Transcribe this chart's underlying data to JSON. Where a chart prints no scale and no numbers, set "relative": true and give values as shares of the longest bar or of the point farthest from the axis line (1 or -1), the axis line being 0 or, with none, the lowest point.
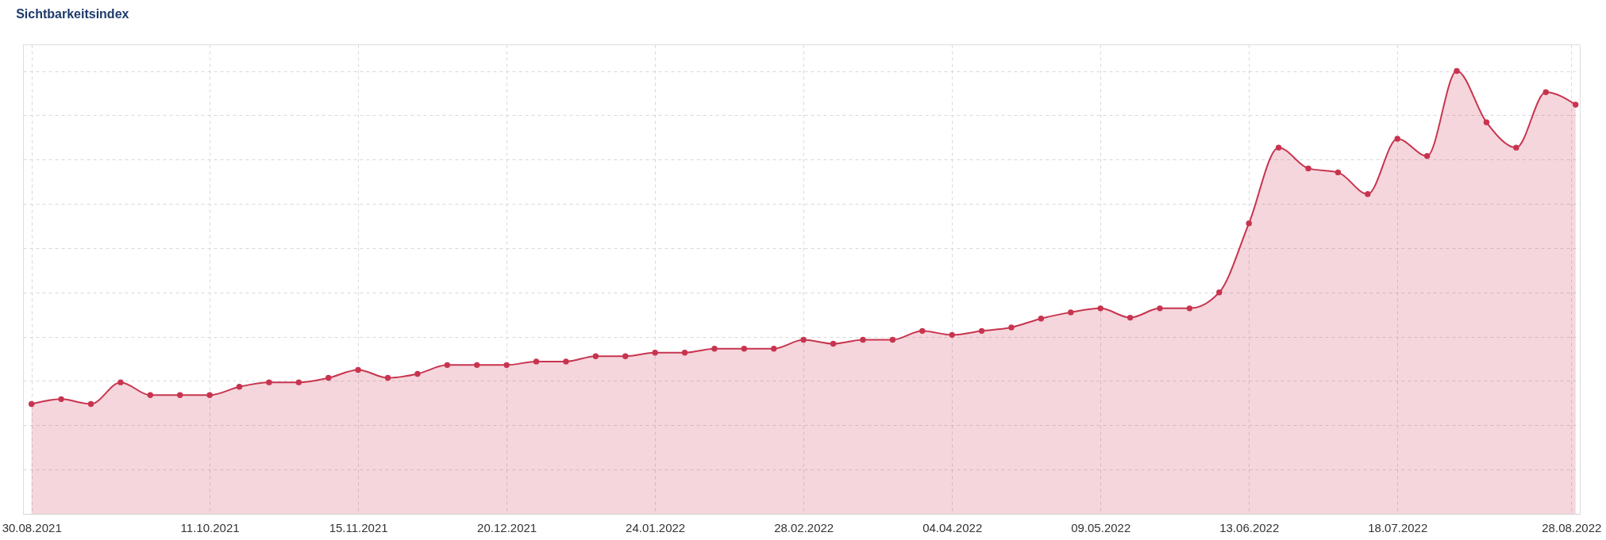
{
  "chart_data": {
    "type": "area",
    "title": "Sichtbarkeitsindex",
    "relative": true,
    "x": [
      "2021-08-30",
      "2021-09-06",
      "2021-09-13",
      "2021-09-20",
      "2021-09-27",
      "2021-10-04",
      "2021-10-11",
      "2021-10-18",
      "2021-10-25",
      "2021-11-01",
      "2021-11-08",
      "2021-11-15",
      "2021-11-22",
      "2021-11-29",
      "2021-12-06",
      "2021-12-13",
      "2021-12-20",
      "2021-12-27",
      "2022-01-03",
      "2022-01-10",
      "2022-01-17",
      "2022-01-24",
      "2022-01-31",
      "2022-02-07",
      "2022-02-14",
      "2022-02-21",
      "2022-02-28",
      "2022-03-07",
      "2022-03-14",
      "2022-03-21",
      "2022-03-28",
      "2022-04-04",
      "2022-04-11",
      "2022-04-18",
      "2022-04-25",
      "2022-05-02",
      "2022-05-09",
      "2022-05-16",
      "2022-05-23",
      "2022-05-30",
      "2022-06-06",
      "2022-06-13",
      "2022-06-20",
      "2022-06-27",
      "2022-07-04",
      "2022-07-11",
      "2022-07-18",
      "2022-07-25",
      "2022-08-01",
      "2022-08-08",
      "2022-08-15",
      "2022-08-22",
      "2022-08-29"
    ],
    "series": [
      {
        "color": "#c8344f",
        "values": [
          0.248,
          0.259,
          0.248,
          0.297,
          0.268,
          0.268,
          0.268,
          0.287,
          0.297,
          0.297,
          0.307,
          0.325,
          0.307,
          0.316,
          0.336,
          0.336,
          0.336,
          0.344,
          0.344,
          0.356,
          0.356,
          0.364,
          0.364,
          0.373,
          0.373,
          0.373,
          0.393,
          0.384,
          0.393,
          0.393,
          0.413,
          0.404,
          0.413,
          0.421,
          0.441,
          0.455,
          0.464,
          0.443,
          0.464,
          0.464,
          0.5,
          0.656,
          0.827,
          0.78,
          0.771,
          0.722,
          0.847,
          0.808,
          1.0,
          0.884,
          0.827,
          0.952,
          0.924
        ]
      }
    ],
    "xlim": [
      "2021-08-28",
      "2022-08-30"
    ],
    "xticks": [
      {
        "value": "2021-08-30",
        "label": "30.08.2021"
      },
      {
        "value": "2021-10-11",
        "label": "11.10.2021"
      },
      {
        "value": "2021-11-15",
        "label": "15.11.2021"
      },
      {
        "value": "2021-12-20",
        "label": "20.12.2021"
      },
      {
        "value": "2022-01-24",
        "label": "24.01.2022"
      },
      {
        "value": "2022-02-28",
        "label": "28.02.2022"
      },
      {
        "value": "2022-04-04",
        "label": "04.04.2022"
      },
      {
        "value": "2022-05-09",
        "label": "09.05.2022"
      },
      {
        "value": "2022-06-13",
        "label": "13.06.2022"
      },
      {
        "value": "2022-07-18",
        "label": "18.07.2022"
      },
      {
        "value": "2022-08-28",
        "label": "28.08.2022"
      }
    ],
    "grid": true,
    "marker": "circle"
  }
}
